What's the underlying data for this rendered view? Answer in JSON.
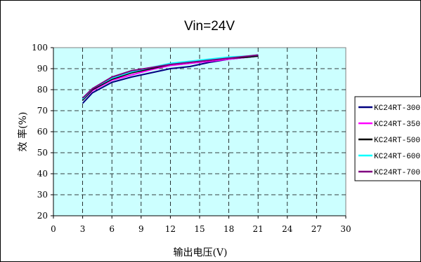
{
  "chart_data": {
    "type": "line",
    "title": "Vin=24V",
    "xlabel": "输出电压(V)",
    "ylabel": "效 率(%)",
    "xlim": [
      0,
      30
    ],
    "ylim": [
      20,
      100
    ],
    "xticks": [
      0,
      3,
      6,
      9,
      12,
      15,
      18,
      21,
      24,
      27,
      30
    ],
    "yticks": [
      20,
      30,
      40,
      50,
      60,
      70,
      80,
      90,
      100
    ],
    "grid": true,
    "legend_position": "right",
    "colors": {
      "plot_background": "#ccffff",
      "grid": "#000000"
    },
    "series": [
      {
        "name": "KC24RT-300",
        "color": "#000080",
        "x": [
          3,
          4,
          6,
          8,
          10,
          12,
          14,
          16,
          18,
          20,
          21
        ],
        "y": [
          73.5,
          78.5,
          83.5,
          86,
          88,
          90,
          91,
          93,
          94.5,
          95.5,
          96
        ]
      },
      {
        "name": "KC24RT-350",
        "color": "#ff00ff",
        "x": [
          3,
          4,
          6,
          8,
          10,
          12,
          14,
          16,
          18,
          20,
          21
        ],
        "y": [
          75,
          79.5,
          84.5,
          87,
          89.5,
          91.5,
          92.5,
          93.5,
          94.5,
          95.5,
          96
        ]
      },
      {
        "name": "KC24RT-500",
        "color": "#000000",
        "x": [
          3,
          4,
          6,
          8,
          10,
          12,
          14,
          16,
          18,
          20,
          21
        ],
        "y": [
          75,
          80,
          85,
          88,
          90,
          92,
          93,
          94,
          95,
          95.5,
          96
        ]
      },
      {
        "name": "KC24RT-600",
        "color": "#00ffff",
        "x": [
          3,
          4,
          6,
          8,
          10,
          12,
          14,
          16,
          18,
          20,
          21
        ],
        "y": [
          75.5,
          80.5,
          85.5,
          88.5,
          90.5,
          92.5,
          93.5,
          94.5,
          95.5,
          96,
          96.5
        ]
      },
      {
        "name": "KC24RT-700",
        "color": "#800080",
        "x": [
          3,
          4,
          6,
          8,
          10,
          12,
          14,
          16,
          18,
          20,
          21
        ],
        "y": [
          76,
          80.5,
          86,
          89,
          90.5,
          92,
          93,
          94,
          95,
          96,
          96.5
        ]
      }
    ]
  }
}
